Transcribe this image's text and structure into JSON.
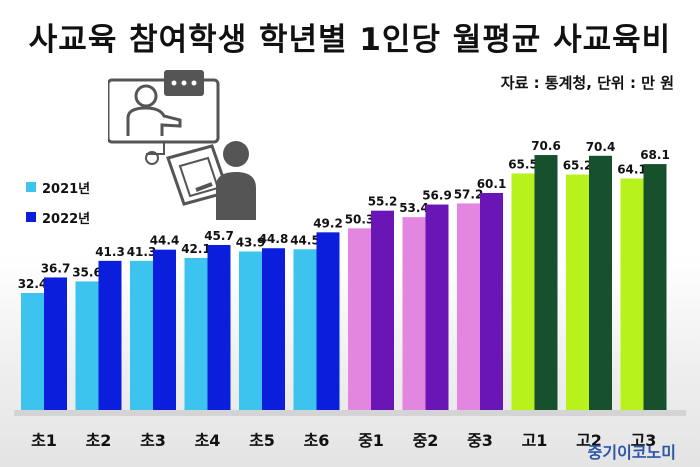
{
  "title": "사교육 참여학생 학년별 1인당 월평균 사교육비",
  "source": "자료 : 통계청, 단위 : 만 원",
  "brand": "중기이코노미",
  "colors": {
    "elementary_2021": "#3cc3ee",
    "elementary_2022": "#0a1edc",
    "middle_2021": "#e386e0",
    "middle_2022": "#6a16b6",
    "high_2021": "#b8f21c",
    "high_2022": "#16502c"
  },
  "legend": [
    {
      "label": "2021년",
      "color": "#3cc3ee"
    },
    {
      "label": "2022년",
      "color": "#0a1edc"
    }
  ],
  "illustration": {
    "icon": "tutoring-online-icon"
  },
  "chart_data": {
    "type": "bar",
    "categories": [
      "초1",
      "초2",
      "초3",
      "초4",
      "초5",
      "초6",
      "중1",
      "중2",
      "중3",
      "고1",
      "고2",
      "고3"
    ],
    "series": [
      {
        "name": "2021년",
        "values": [
          32.4,
          35.6,
          41.3,
          42.1,
          43.9,
          44.5,
          50.3,
          53.4,
          57.2,
          65.5,
          65.2,
          64.1
        ]
      },
      {
        "name": "2022년",
        "values": [
          36.7,
          41.3,
          44.4,
          45.7,
          44.8,
          49.2,
          55.2,
          56.9,
          60.1,
          70.6,
          70.4,
          68.1
        ]
      }
    ],
    "ylim": [
      0,
      80
    ],
    "grid": false
  }
}
